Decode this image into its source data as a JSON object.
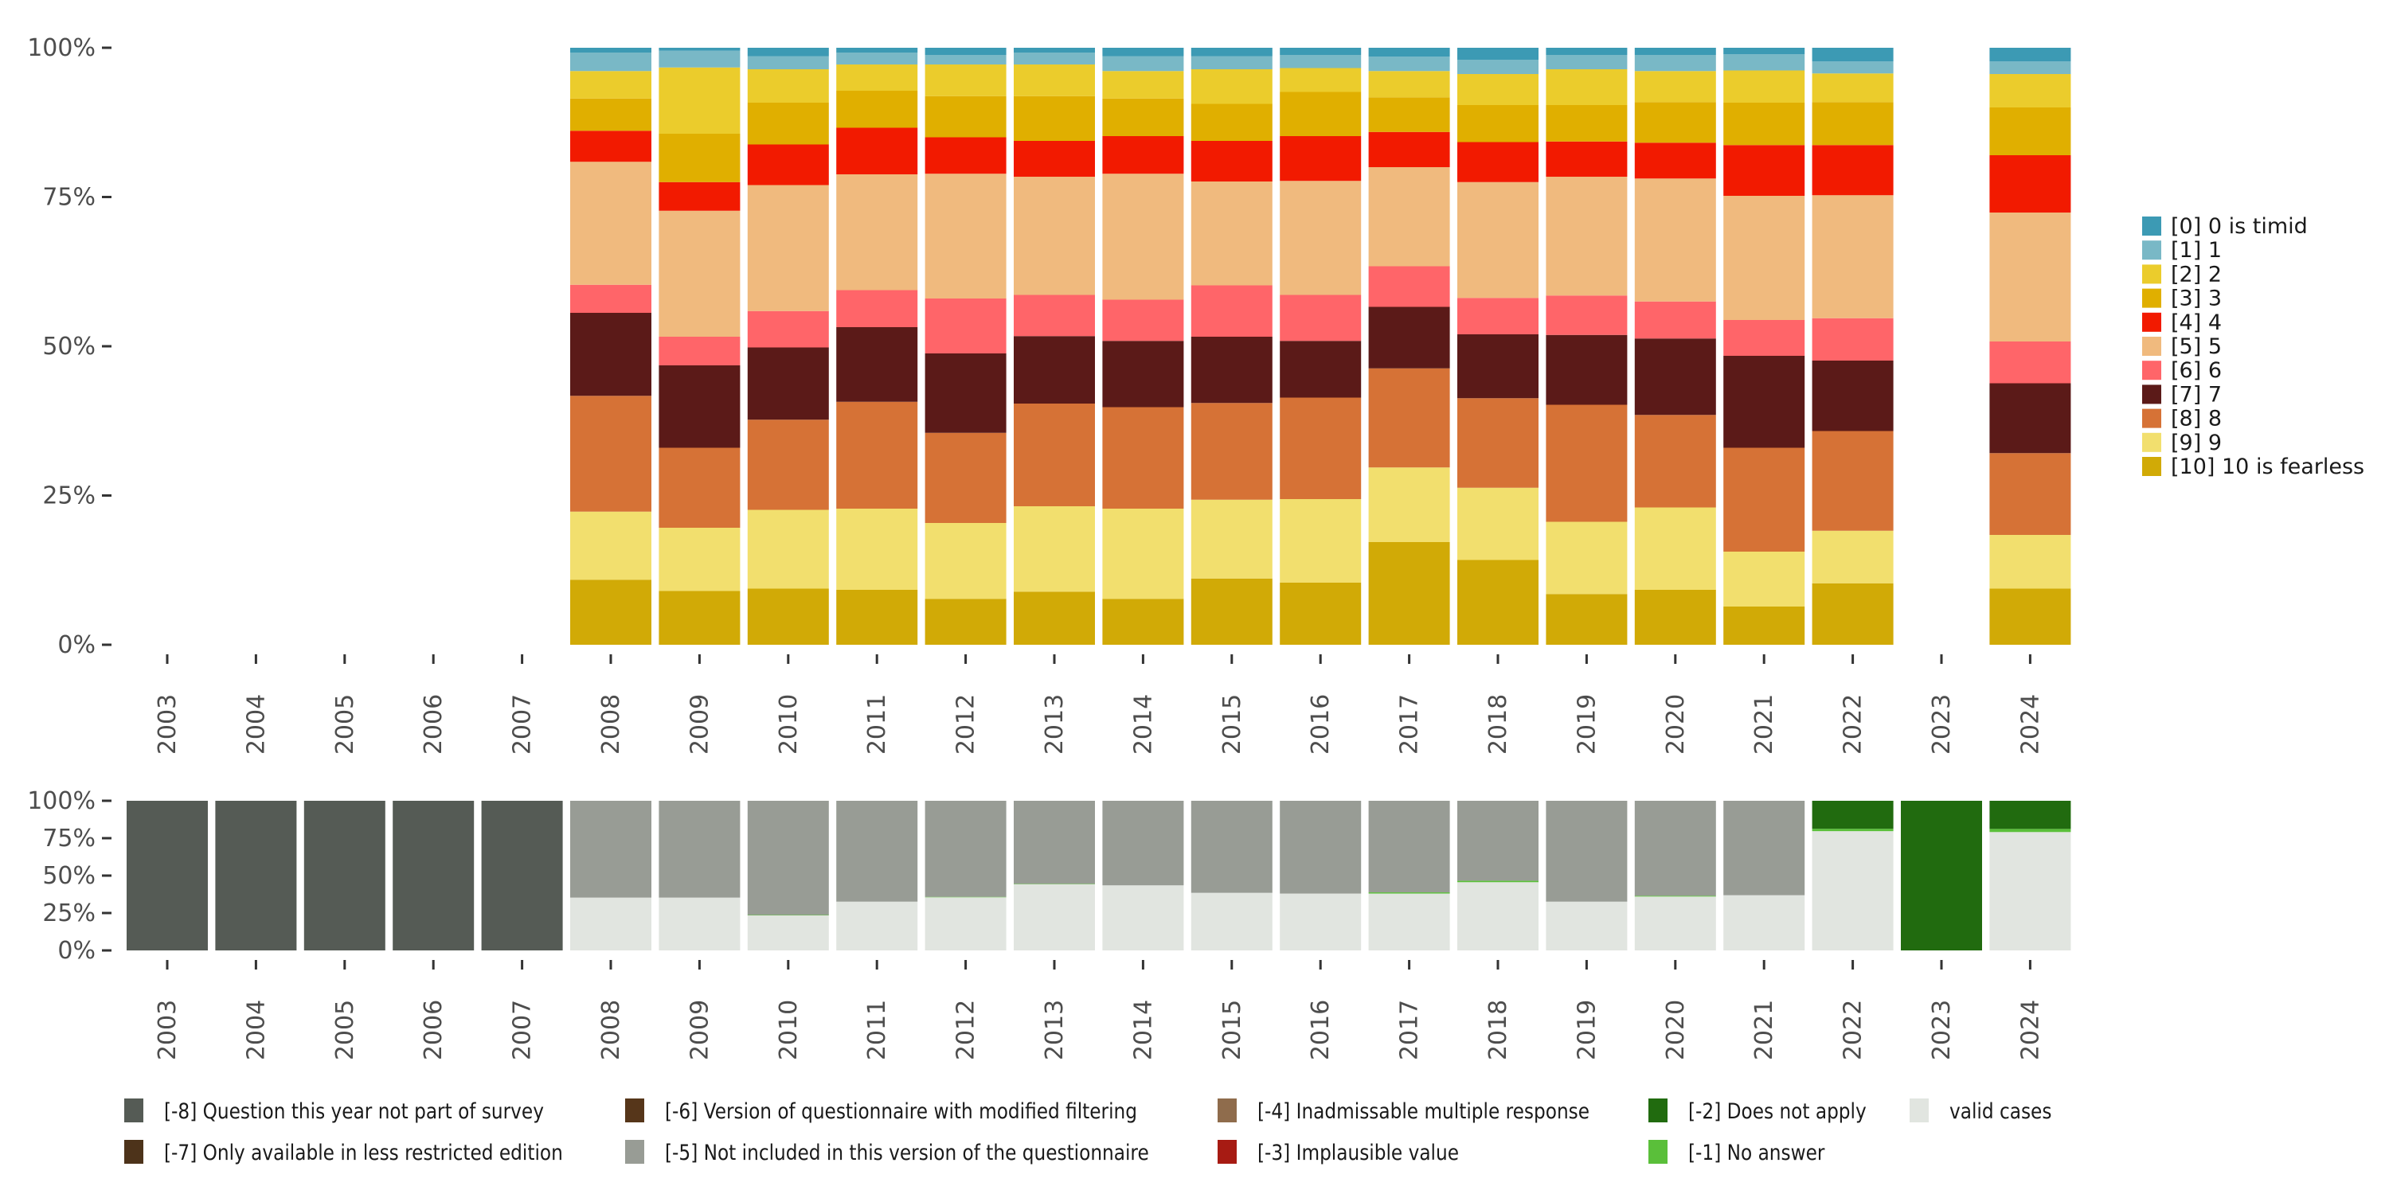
{
  "chart_data": [
    {
      "type": "bar",
      "stacked": true,
      "title": "",
      "xlabel": "",
      "ylabel": "",
      "ylim": [
        0,
        100
      ],
      "y_ticks": [
        "0%",
        "25%",
        "50%",
        "75%",
        "100%"
      ],
      "categories": [
        "2003",
        "2004",
        "2005",
        "2006",
        "2007",
        "2008",
        "2009",
        "2010",
        "2011",
        "2012",
        "2013",
        "2014",
        "2015",
        "2016",
        "2017",
        "2018",
        "2019",
        "2020",
        "2021",
        "2022",
        "2023",
        "2024"
      ],
      "legend_position": "right",
      "series": [
        {
          "name": "[0] 0 is timid",
          "color": "#3c9ab4",
          "values": [
            null,
            null,
            null,
            null,
            null,
            0.8,
            0.5,
            1.4,
            0.8,
            1.2,
            0.8,
            1.4,
            1.4,
            1.2,
            1.5,
            2.0,
            1.2,
            1.2,
            1.1,
            2.3,
            null,
            2.3
          ]
        },
        {
          "name": "[1] 1",
          "color": "#79b8c6",
          "values": [
            null,
            null,
            null,
            null,
            null,
            3.1,
            2.8,
            2.2,
            2.0,
            1.6,
            2.0,
            2.5,
            2.2,
            2.2,
            2.4,
            2.4,
            2.4,
            2.7,
            2.7,
            2.0,
            null,
            2.1
          ]
        },
        {
          "name": "[2] 2",
          "color": "#ebcc2c",
          "values": [
            null,
            null,
            null,
            null,
            null,
            4.6,
            11.1,
            5.6,
            4.4,
            5.3,
            5.3,
            4.6,
            5.8,
            4.0,
            4.4,
            5.2,
            6.0,
            5.2,
            5.4,
            4.8,
            null,
            5.6
          ]
        },
        {
          "name": "[3] 3",
          "color": "#e0af00",
          "values": [
            null,
            null,
            null,
            null,
            null,
            5.4,
            8.1,
            7.0,
            6.2,
            6.9,
            7.5,
            6.3,
            6.2,
            7.4,
            5.8,
            6.2,
            6.1,
            6.8,
            7.1,
            7.2,
            null,
            8.0
          ]
        },
        {
          "name": "[4] 4",
          "color": "#f21a00",
          "values": [
            null,
            null,
            null,
            null,
            null,
            5.2,
            4.8,
            6.8,
            7.8,
            6.1,
            6.0,
            6.3,
            6.8,
            7.5,
            5.9,
            6.7,
            5.9,
            6.0,
            8.5,
            8.4,
            null,
            9.6
          ]
        },
        {
          "name": "[5] 5",
          "color": "#f0ba7e",
          "values": [
            null,
            null,
            null,
            null,
            null,
            20.6,
            21.1,
            21.1,
            19.4,
            20.9,
            19.8,
            21.1,
            17.4,
            19.1,
            16.6,
            19.4,
            19.9,
            20.6,
            20.8,
            20.6,
            null,
            21.6
          ]
        },
        {
          "name": "[6] 6",
          "color": "#ff6569",
          "values": [
            null,
            null,
            null,
            null,
            null,
            4.7,
            4.8,
            6.1,
            6.2,
            9.2,
            6.9,
            6.9,
            8.6,
            7.7,
            6.8,
            6.1,
            6.6,
            6.2,
            6.0,
            7.1,
            null,
            7.0
          ]
        },
        {
          "name": "[7] 7",
          "color": "#5b1a18",
          "values": [
            null,
            null,
            null,
            null,
            null,
            13.9,
            13.8,
            12.1,
            12.5,
            13.3,
            11.3,
            11.1,
            11.1,
            9.5,
            10.3,
            10.7,
            11.7,
            12.8,
            15.4,
            11.8,
            null,
            11.7
          ]
        },
        {
          "name": "[8] 8",
          "color": "#d67236",
          "values": [
            null,
            null,
            null,
            null,
            null,
            19.4,
            13.4,
            15.1,
            17.9,
            15.1,
            17.2,
            17.0,
            16.2,
            17.0,
            16.6,
            15.0,
            19.6,
            15.5,
            17.4,
            16.7,
            null,
            13.7
          ]
        },
        {
          "name": "[9] 9",
          "color": "#f2df6e",
          "values": [
            null,
            null,
            null,
            null,
            null,
            11.4,
            10.6,
            13.2,
            13.6,
            12.7,
            14.3,
            15.1,
            13.2,
            14.0,
            12.5,
            12.1,
            12.1,
            13.8,
            9.2,
            8.8,
            null,
            9.0
          ]
        },
        {
          "name": "[10] 10 is fearless",
          "color": "#d1aa06",
          "values": [
            null,
            null,
            null,
            null,
            null,
            10.9,
            9.0,
            9.4,
            9.2,
            7.7,
            8.9,
            7.7,
            11.1,
            10.4,
            17.2,
            14.2,
            8.5,
            9.2,
            6.4,
            10.3,
            null,
            9.4
          ]
        }
      ]
    },
    {
      "type": "bar",
      "stacked": true,
      "title": "",
      "xlabel": "",
      "ylabel": "",
      "ylim": [
        0,
        100
      ],
      "y_ticks": [
        "0%",
        "25%",
        "50%",
        "75%",
        "100%"
      ],
      "categories": [
        "2003",
        "2004",
        "2005",
        "2006",
        "2007",
        "2008",
        "2009",
        "2010",
        "2011",
        "2012",
        "2013",
        "2014",
        "2015",
        "2016",
        "2017",
        "2018",
        "2019",
        "2020",
        "2021",
        "2022",
        "2023",
        "2024"
      ],
      "legend_position": "bottom",
      "series": [
        {
          "name": "[-8] Question this year not part of survey",
          "color": "#555b55",
          "values": [
            100,
            100,
            100,
            100,
            100,
            0,
            0,
            0,
            0,
            0,
            0,
            0,
            0,
            0,
            0,
            0,
            0,
            0,
            0,
            0,
            0,
            0
          ]
        },
        {
          "name": "[-7] Only available in less restricted edition",
          "color": "#4d331a",
          "values": [
            0,
            0,
            0,
            0,
            0,
            0,
            0,
            0,
            0,
            0,
            0,
            0,
            0,
            0,
            0,
            0,
            0,
            0,
            0,
            0,
            0,
            0
          ]
        },
        {
          "name": "[-6] Version of questionnaire with modified filtering",
          "color": "#56361a",
          "values": [
            0,
            0,
            0,
            0,
            0,
            0,
            0,
            0,
            0,
            0,
            0,
            0,
            0,
            0,
            0,
            0,
            0,
            0,
            0,
            0,
            0,
            0
          ]
        },
        {
          "name": "[-5] Not included in this version of the questionnaire",
          "color": "#989c95",
          "values": [
            0,
            0,
            0,
            0,
            0,
            64.7,
            64.7,
            76.3,
            67.4,
            64.2,
            55.5,
            56.5,
            61.5,
            62.0,
            61.2,
            53.4,
            67.4,
            63.5,
            63.1,
            0,
            0,
            0
          ]
        },
        {
          "name": "[-4] Inadmissable multiple response",
          "color": "#8f6c4c",
          "values": [
            0,
            0,
            0,
            0,
            0,
            0,
            0,
            0,
            0,
            0,
            0,
            0,
            0,
            0,
            0,
            0,
            0,
            0,
            0,
            0,
            0,
            0
          ]
        },
        {
          "name": "[-3] Implausible value",
          "color": "#a71b13",
          "values": [
            0,
            0,
            0,
            0,
            0,
            0,
            0,
            0,
            0,
            0,
            0,
            0,
            0,
            0,
            0,
            0,
            0,
            0,
            0,
            0,
            0,
            0
          ]
        },
        {
          "name": "[-2] Does not apply",
          "color": "#216b0f",
          "values": [
            0,
            0,
            0,
            0,
            0,
            0,
            0,
            0,
            0,
            0,
            0,
            0,
            0,
            0,
            0,
            0,
            0,
            0,
            0,
            18.7,
            100,
            18.8
          ]
        },
        {
          "name": "[-1] No answer",
          "color": "#5abf3a",
          "values": [
            0,
            0,
            0,
            0,
            0,
            0,
            0,
            0.3,
            0,
            0.3,
            0.3,
            0,
            0,
            0,
            0.8,
            1.0,
            0,
            0.5,
            0,
            1.6,
            0,
            2.1
          ]
        },
        {
          "name": "valid cases",
          "color": "#e1e5e0",
          "values": [
            0,
            0,
            0,
            0,
            0,
            35.3,
            35.3,
            23.4,
            32.6,
            35.5,
            44.2,
            43.5,
            38.5,
            38.0,
            38.0,
            45.6,
            32.6,
            36.0,
            36.9,
            79.7,
            0,
            79.1
          ]
        }
      ]
    }
  ]
}
